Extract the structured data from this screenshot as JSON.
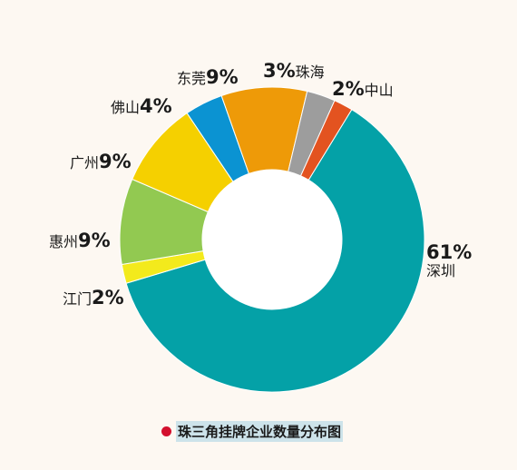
{
  "chart_data": {
    "type": "pie",
    "subtype": "donut",
    "title": "珠三角挂牌企业数量分布图",
    "unit": "%",
    "slices": [
      {
        "name": "深圳",
        "value": 61,
        "label": "61%",
        "color": "#04a1a7"
      },
      {
        "name": "江门",
        "value": 2,
        "label": "2%",
        "color": "#f3ea1c"
      },
      {
        "name": "惠州",
        "value": 9,
        "label": "9%",
        "color": "#92c951"
      },
      {
        "name": "广州",
        "value": 9,
        "label": "9%",
        "color": "#f5d000"
      },
      {
        "name": "佛山",
        "value": 4,
        "label": "4%",
        "color": "#0b93d2"
      },
      {
        "name": "东莞",
        "value": 9,
        "label": "9%",
        "color": "#ee9a08"
      },
      {
        "name": "珠海",
        "value": 3,
        "label": "3%",
        "color": "#9d9d9d"
      },
      {
        "name": "中山",
        "value": 2,
        "label": "2%",
        "color": "#e35320"
      }
    ]
  },
  "legend": {
    "marker_color": "#d3102e",
    "highlight_color": "#cde3ea"
  }
}
